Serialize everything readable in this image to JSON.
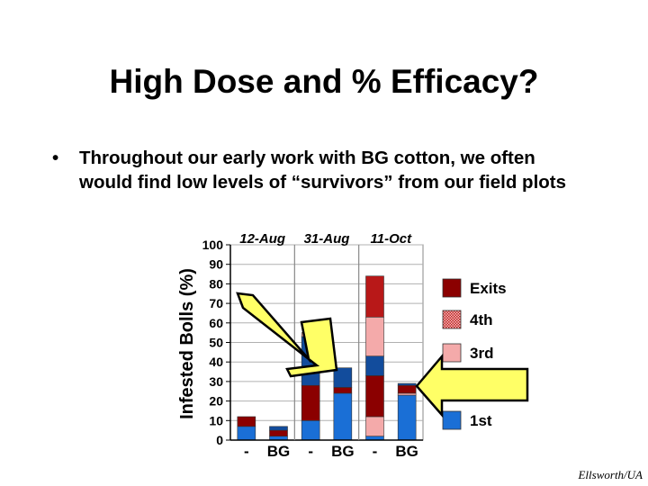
{
  "slide": {
    "title": "High Dose and % Efficacy?",
    "bullet_marker": "•",
    "bullet_text": "Throughout our early work with BG cotton, we often would find low levels of “survivors” from our field plots",
    "credit": "Ellsworth/UA"
  },
  "chart_data": {
    "type": "bar",
    "stacked": true,
    "ylabel": "Infested Bolls (%)",
    "ylim": [
      0,
      100
    ],
    "yticks": [
      0,
      10,
      20,
      30,
      40,
      50,
      60,
      70,
      80,
      90,
      100
    ],
    "grid": true,
    "groups": [
      "12-Aug",
      "31-Aug",
      "11-Oct"
    ],
    "categories": [
      "-",
      "BG",
      "-",
      "BG",
      "-",
      "BG"
    ],
    "series": [
      {
        "name": "1st",
        "color": "#1a6fd6",
        "values": [
          7,
          2,
          10,
          24,
          2,
          23
        ]
      },
      {
        "name": "3rd",
        "color": "#f4aaaa",
        "values": [
          0,
          0,
          0,
          0,
          10,
          1
        ]
      },
      {
        "name": "4th",
        "color": "#c02020",
        "values": [
          0,
          0,
          0,
          0,
          0,
          0
        ]
      },
      {
        "name": "Exits",
        "color": "#8b0000",
        "values": [
          5,
          3,
          18,
          3,
          21,
          4
        ]
      },
      {
        "name": "",
        "color": "#124c9c",
        "values": [
          0,
          2,
          25,
          10,
          10,
          1
        ]
      },
      {
        "name": "",
        "color": "#f4aaaa",
        "values": [
          0,
          0,
          2,
          0,
          20,
          0
        ]
      },
      {
        "name": "",
        "color": "#b81818",
        "values": [
          0,
          0,
          0,
          0,
          21,
          0
        ]
      }
    ],
    "legend": [
      {
        "name": "Exits",
        "color": "#8b0000"
      },
      {
        "name": "4th",
        "color": "#c02020"
      },
      {
        "name": "3rd",
        "color": "#f4aaaa"
      },
      {
        "name": "1st",
        "color": "#1a6fd6"
      }
    ],
    "legend_placement": "right",
    "annotations": [
      "yellow arrow pointing to 31-Aug BG bar",
      "yellow arrow pointing to 11-Oct BG bar"
    ]
  }
}
